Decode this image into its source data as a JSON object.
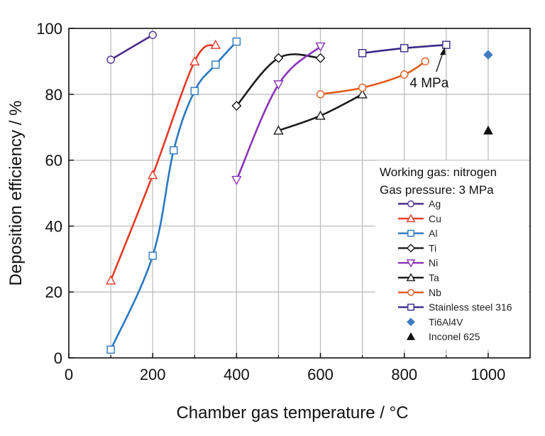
{
  "chart_data": {
    "type": "line",
    "xlabel": "Chamber gas temperature / °C",
    "ylabel": "Deposition efficiency / %",
    "xlim": [
      0,
      1100
    ],
    "ylim": [
      0,
      100
    ],
    "xticks": [
      0,
      200,
      400,
      600,
      800,
      1000
    ],
    "yticks": [
      0,
      20,
      40,
      60,
      80,
      100
    ],
    "x_minor_grid": [
      100,
      200,
      300,
      400,
      500,
      600,
      700,
      800,
      900,
      1000
    ],
    "y_grid": [
      20,
      40,
      60,
      80
    ],
    "grid": true,
    "legend_position": "right",
    "legend_header": [
      "Working gas: nitrogen",
      "Gas pressure: 3 MPa"
    ],
    "annotations": [
      {
        "text": "4 MPa",
        "x": 900,
        "y": 95
      }
    ],
    "series": [
      {
        "name": "Ag",
        "marker": "circle",
        "color": "#4b2d8a",
        "x": [
          100,
          200
        ],
        "y": [
          90.5,
          98
        ]
      },
      {
        "name": "Cu",
        "marker": "triangle-up",
        "color": "#e53a28",
        "x": [
          100,
          200,
          300,
          350
        ],
        "y": [
          23.5,
          55.5,
          90,
          95
        ]
      },
      {
        "name": "Al",
        "marker": "square",
        "color": "#2a78c0",
        "x": [
          100,
          200,
          250,
          300,
          350,
          400
        ],
        "y": [
          2.5,
          31,
          63,
          81,
          89,
          96
        ]
      },
      {
        "name": "Ti",
        "marker": "diamond",
        "color": "#1a1a1a",
        "x": [
          400,
          500,
          600
        ],
        "y": [
          76.5,
          91,
          91
        ]
      },
      {
        "name": "Ni",
        "marker": "triangle-down",
        "color": "#8a35b8",
        "x": [
          400,
          500,
          600
        ],
        "y": [
          54,
          83,
          94.5
        ]
      },
      {
        "name": "Ta",
        "marker": "triangle-up",
        "color": "#1a1a1a",
        "x": [
          500,
          600,
          700
        ],
        "y": [
          69,
          73.5,
          80
        ]
      },
      {
        "name": "Nb",
        "marker": "circle",
        "color": "#e05a1c",
        "x": [
          600,
          700,
          800,
          850
        ],
        "y": [
          80,
          82,
          86,
          90
        ]
      },
      {
        "name": "Stainless steel 316",
        "marker": "square",
        "color": "#3b2a8a",
        "x": [
          700,
          800,
          900
        ],
        "y": [
          92.5,
          94,
          95
        ]
      },
      {
        "name": "Ti6Al4V",
        "marker": "filled-diamond",
        "color": "#3f7cc4",
        "x": [
          1000
        ],
        "y": [
          92
        ]
      },
      {
        "name": "Inconel 625",
        "marker": "filled-triangle",
        "color": "#111111",
        "x": [
          1000
        ],
        "y": [
          69
        ]
      }
    ]
  }
}
